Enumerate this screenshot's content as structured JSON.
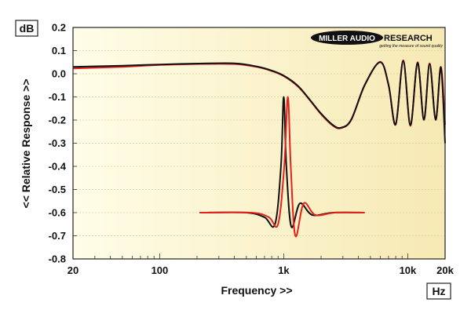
{
  "chart_data": {
    "type": "line",
    "xlabel": "Frequency >>",
    "ylabel": "<< Relative Response >>",
    "y_unit": "dB",
    "x_unit": "Hz",
    "x_scale": "log",
    "xlim": [
      20,
      20000
    ],
    "ylim": [
      -0.8,
      0.2
    ],
    "grid": true,
    "x_ticks": [
      {
        "value": 20,
        "label": "20"
      },
      {
        "value": 100,
        "label": "100"
      },
      {
        "value": 1000,
        "label": "1k"
      },
      {
        "value": 10000,
        "label": "10k"
      },
      {
        "value": 20000,
        "label": "20k"
      }
    ],
    "y_ticks": [
      0.2,
      0.1,
      0.0,
      -0.1,
      -0.2,
      -0.3,
      -0.4,
      -0.5,
      -0.6,
      -0.7,
      -0.8
    ],
    "y_tick_labels": [
      "0.2",
      "0.1",
      "0.0",
      "-0.1",
      "-0.2",
      "-0.3",
      "-0.4",
      "-0.5",
      "-0.6",
      "-0.7",
      "-0.8"
    ],
    "series": [
      {
        "color": "#e8211b",
        "x": [
          20,
          50,
          100,
          200,
          400,
          600,
          800,
          1000,
          1300,
          1600,
          2000,
          2500,
          2900,
          3500,
          4500,
          6000,
          7000,
          8000,
          9200,
          10500,
          12000,
          13500,
          15000,
          16800,
          18500,
          20000
        ],
        "y": [
          0.023,
          0.03,
          0.038,
          0.042,
          0.042,
          0.03,
          0.012,
          -0.01,
          -0.055,
          -0.11,
          -0.175,
          -0.225,
          -0.235,
          -0.2,
          -0.05,
          0.052,
          -0.05,
          -0.22,
          0.058,
          -0.225,
          0.05,
          -0.2,
          0.045,
          -0.2,
          0.03,
          -0.22
        ]
      },
      {
        "color": "#111111",
        "x": [
          20,
          50,
          100,
          200,
          400,
          600,
          800,
          1000,
          1300,
          1600,
          2000,
          2500,
          2900,
          3500,
          4500,
          6000,
          7000,
          8000,
          9200,
          10500,
          12000,
          13500,
          15000,
          16800,
          18500,
          20000
        ],
        "y": [
          0.03,
          0.035,
          0.04,
          0.044,
          0.045,
          0.032,
          0.014,
          -0.008,
          -0.052,
          -0.108,
          -0.172,
          -0.222,
          -0.233,
          -0.198,
          -0.048,
          0.05,
          -0.048,
          -0.218,
          0.055,
          -0.222,
          0.047,
          -0.198,
          0.042,
          -0.198,
          0.028,
          -0.3
        ]
      },
      {
        "color": "#111111",
        "x": [
          210,
          500,
          700,
          850,
          950,
          1000,
          1050,
          1150,
          1350,
          1700,
          2500,
          4500
        ],
        "y": [
          -0.6,
          -0.6,
          -0.62,
          -0.65,
          -0.4,
          -0.1,
          -0.4,
          -0.66,
          -0.56,
          -0.61,
          -0.6,
          -0.6
        ]
      },
      {
        "color": "#e8211b",
        "x": [
          210,
          550,
          760,
          900,
          1010,
          1080,
          1140,
          1240,
          1450,
          1800,
          2600,
          4500
        ],
        "y": [
          -0.6,
          -0.6,
          -0.62,
          -0.65,
          -0.4,
          -0.1,
          -0.4,
          -0.7,
          -0.56,
          -0.61,
          -0.6,
          -0.6
        ]
      }
    ]
  },
  "branding": {
    "logo_main": "MILLER AUDIO",
    "logo_second": "RESEARCH",
    "logo_tagline": "getting the measure of sound quality"
  }
}
